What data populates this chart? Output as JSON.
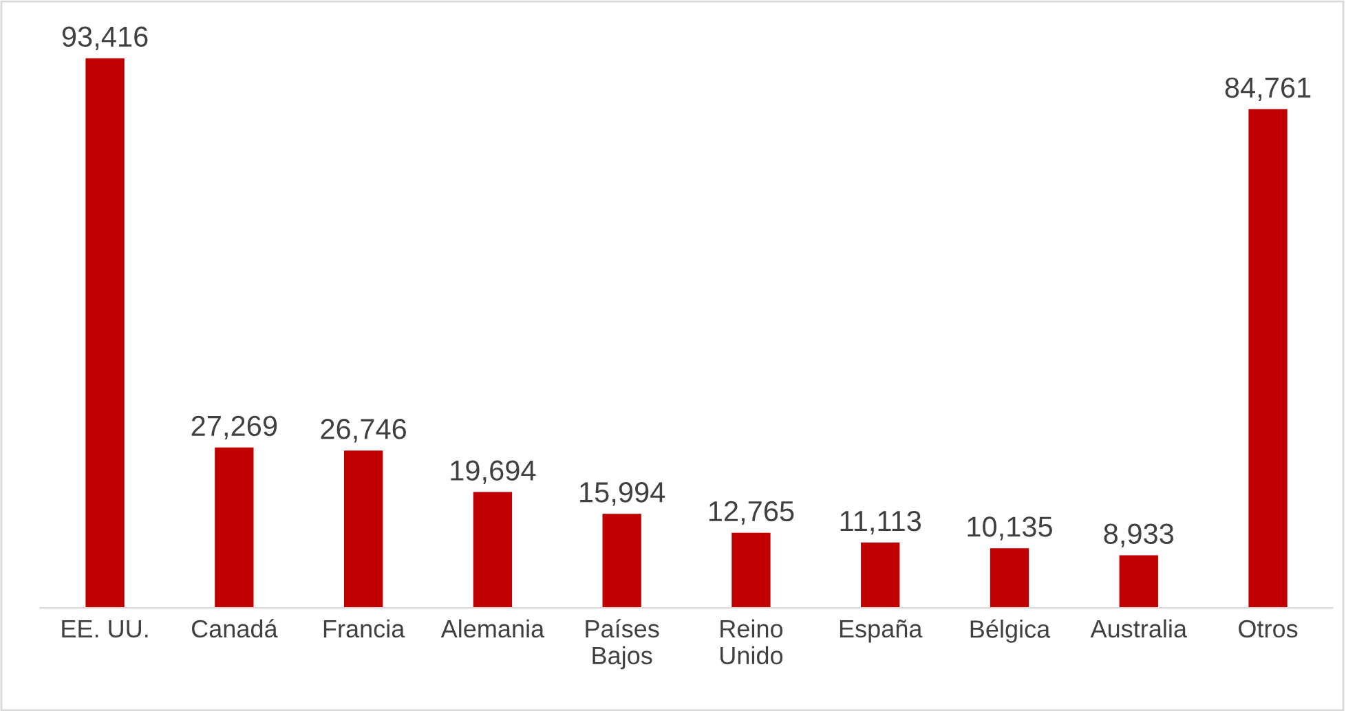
{
  "chart_data": {
    "type": "bar",
    "categories": [
      "EE. UU.",
      "Canadá",
      "Francia",
      "Alemania",
      "Países\nBajos",
      "Reino\nUnido",
      "España",
      "Bélgica",
      "Australia",
      "Otros"
    ],
    "values": [
      93416,
      27269,
      26746,
      19694,
      15994,
      12765,
      11113,
      10135,
      8933,
      84761
    ],
    "value_labels": [
      "93,416",
      "27,269",
      "26,746",
      "19,694",
      "15,994",
      "12,765",
      "11,113",
      "10,135",
      "8,933",
      "84,761"
    ],
    "color": "#c00000",
    "grid": false,
    "legend": false
  }
}
